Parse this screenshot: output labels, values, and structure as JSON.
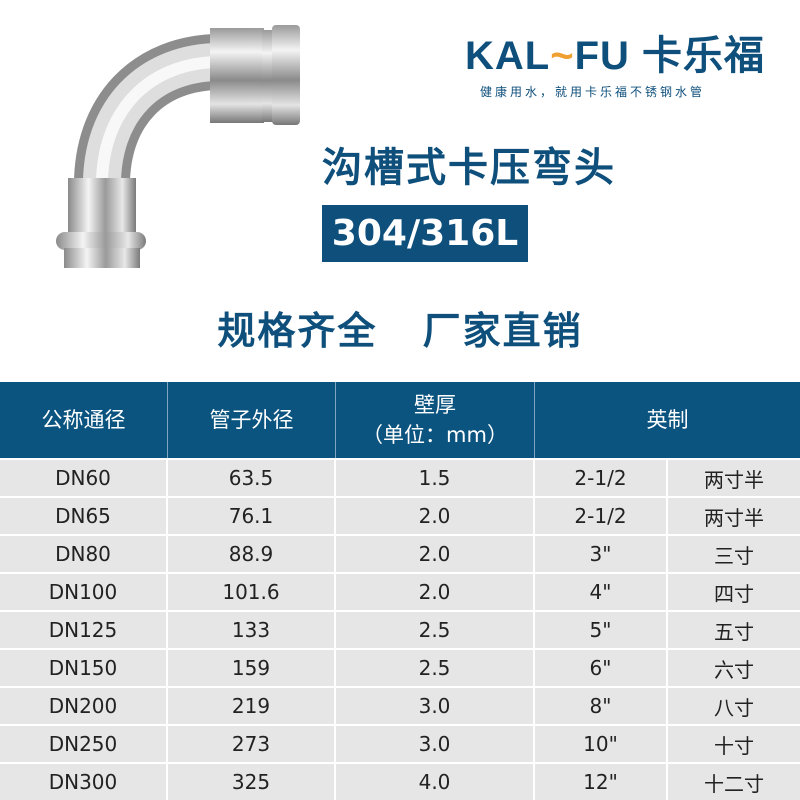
{
  "brand": {
    "logo": "KALEFU 卡乐福",
    "slogan": "健康用水，就用卡乐福不锈钢水管",
    "accent": "#0e4f7c",
    "swoosh": "#f0a030"
  },
  "product": {
    "title": "沟槽式卡压弯头",
    "material": "304/316L",
    "slogan": "规格齐全 厂家直销"
  },
  "table": {
    "headers": [
      "公称通径",
      "管子外径",
      "壁厚（单位：mm）",
      "英制"
    ],
    "rows": [
      [
        "DN60",
        "63.5",
        "1.5",
        "2-1/2",
        "两寸半"
      ],
      [
        "DN65",
        "76.1",
        "2.0",
        "2-1/2",
        "两寸半"
      ],
      [
        "DN80",
        "88.9",
        "2.0",
        "3\"",
        "三寸"
      ],
      [
        "DN100",
        "101.6",
        "2.0",
        "4\"",
        "四寸"
      ],
      [
        "DN125",
        "133",
        "2.5",
        "5\"",
        "五寸"
      ],
      [
        "DN150",
        "159",
        "2.5",
        "6\"",
        "六寸"
      ],
      [
        "DN200",
        "219",
        "3.0",
        "8\"",
        "八寸"
      ],
      [
        "DN250",
        "273",
        "3.0",
        "10\"",
        "十寸"
      ],
      [
        "DN300",
        "325",
        "4.0",
        "12\"",
        "十二寸"
      ]
    ]
  }
}
